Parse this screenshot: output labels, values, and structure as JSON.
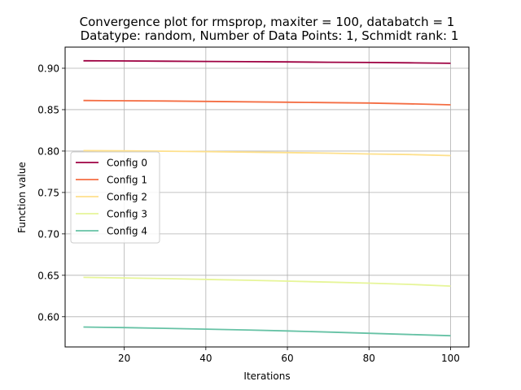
{
  "chart_data": {
    "type": "line",
    "title_line1": "Convergence plot for rmsprop, maxiter = 100, databatch = 1",
    "title_line2": "Datatype: random, Number of Data Points: 1, Schmidt rank: 1",
    "xlabel": "Iterations",
    "ylabel": "Function value",
    "xlim": [
      5.5,
      104.5
    ],
    "ylim": [
      0.5635,
      0.9255
    ],
    "xticks": [
      20,
      40,
      60,
      80,
      100
    ],
    "xtick_labels": [
      "20",
      "40",
      "60",
      "80",
      "100"
    ],
    "yticks": [
      0.6,
      0.65,
      0.7,
      0.75,
      0.8,
      0.85,
      0.9
    ],
    "ytick_labels": [
      "0.60",
      "0.65",
      "0.70",
      "0.75",
      "0.80",
      "0.85",
      "0.90"
    ],
    "grid": true,
    "legend_position": "center-left",
    "x": [
      10,
      20,
      30,
      40,
      50,
      60,
      70,
      80,
      90,
      100
    ],
    "series": [
      {
        "name": "Config 0",
        "color": "#9e0142",
        "values": [
          0.909,
          0.9088,
          0.9085,
          0.9082,
          0.9079,
          0.9076,
          0.9073,
          0.907,
          0.9066,
          0.906
        ]
      },
      {
        "name": "Config 1",
        "color": "#f46d43",
        "values": [
          0.861,
          0.8608,
          0.8605,
          0.86,
          0.8595,
          0.859,
          0.8585,
          0.858,
          0.857,
          0.8558
        ]
      },
      {
        "name": "Config 2",
        "color": "#fee08b",
        "values": [
          0.8005,
          0.8002,
          0.7998,
          0.7993,
          0.7988,
          0.7982,
          0.7975,
          0.7965,
          0.7958,
          0.7945
        ]
      },
      {
        "name": "Config 3",
        "color": "#e6f598",
        "values": [
          0.6475,
          0.6468,
          0.646,
          0.645,
          0.644,
          0.643,
          0.6418,
          0.6405,
          0.639,
          0.637
        ]
      },
      {
        "name": "Config 4",
        "color": "#66c2a5",
        "values": [
          0.5875,
          0.5868,
          0.586,
          0.585,
          0.584,
          0.5828,
          0.5815,
          0.58,
          0.5785,
          0.577
        ]
      }
    ]
  }
}
